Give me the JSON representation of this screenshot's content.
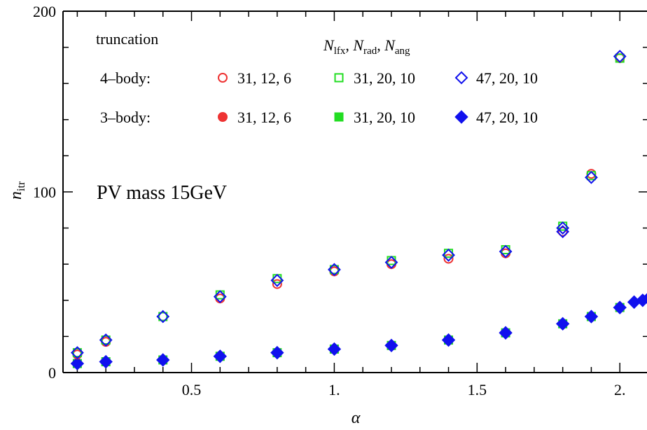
{
  "chart_data": {
    "type": "scatter",
    "title": "",
    "annotation": "PV mass 15GeV",
    "xlabel": "α",
    "ylabel": {
      "main": "n",
      "sub": "itr"
    },
    "xlim": [
      0.05,
      2.1
    ],
    "ylim": [
      0,
      200
    ],
    "x_ticks": [
      {
        "value": 0.5,
        "label": "0.5"
      },
      {
        "value": 1.0,
        "label": "1."
      },
      {
        "value": 1.5,
        "label": "1.5"
      },
      {
        "value": 2.0,
        "label": "2."
      }
    ],
    "y_ticks": [
      {
        "value": 0,
        "label": "0"
      },
      {
        "value": 100,
        "label": "100"
      },
      {
        "value": 200,
        "label": "200"
      }
    ],
    "grid": false,
    "legend": {
      "placement": "top-left",
      "truncation_header": "truncation",
      "param_header_parts": [
        {
          "main": "N",
          "sub": "lfx",
          "tail": ", "
        },
        {
          "main": "N",
          "sub": "rad",
          "tail": ", "
        },
        {
          "main": "N",
          "sub": "ang",
          "tail": ""
        }
      ],
      "row_labels": [
        "4–body:",
        "3–body:"
      ],
      "series_labels": [
        "31, 12, 6",
        "31, 20, 10",
        "47, 20, 10"
      ]
    },
    "series": [
      {
        "name": "4–body: 31, 12, 6",
        "marker": "circle-open",
        "color": "#ee3333",
        "x": [
          0.1,
          0.2,
          0.4,
          0.6,
          0.8,
          1.0,
          1.2,
          1.4,
          1.6,
          1.8,
          1.9,
          2.0
        ],
        "y": [
          10,
          17,
          31,
          41,
          49,
          56,
          60,
          63,
          66,
          78,
          110,
          174
        ]
      },
      {
        "name": "4–body: 31, 20, 10",
        "marker": "square-open",
        "color": "#22dd22",
        "x": [
          0.1,
          0.2,
          0.4,
          0.6,
          0.8,
          1.0,
          1.2,
          1.4,
          1.6,
          1.8,
          1.9,
          2.0
        ],
        "y": [
          11,
          18,
          31,
          43,
          52,
          57,
          62,
          66,
          68,
          81,
          109,
          174
        ]
      },
      {
        "name": "4–body: 47, 20, 10",
        "marker": "diamond-open",
        "color": "#1111ee",
        "x": [
          0.1,
          0.2,
          0.4,
          0.6,
          0.8,
          1.0,
          1.2,
          1.4,
          1.6,
          1.8,
          1.8,
          1.9,
          2.0
        ],
        "y": [
          11,
          18,
          31,
          42,
          51,
          57,
          61,
          65,
          67,
          78,
          80,
          108,
          175
        ]
      },
      {
        "name": "3–body: 31, 12, 6",
        "marker": "circle-filled",
        "color": "#ee3333",
        "x": [
          0.1,
          0.2,
          0.4,
          0.6,
          0.8,
          1.0,
          1.2,
          1.4,
          1.6,
          1.8,
          1.9,
          2.0
        ],
        "y": [
          5,
          6,
          7,
          9,
          11,
          13,
          15,
          18,
          22,
          27,
          31,
          36
        ]
      },
      {
        "name": "3–body: 31, 20, 10",
        "marker": "square-filled",
        "color": "#22dd22",
        "x": [
          0.1,
          0.2,
          0.4,
          0.6,
          0.8,
          1.0,
          1.2,
          1.4,
          1.6,
          1.8,
          1.9,
          2.0
        ],
        "y": [
          5,
          6,
          7,
          9,
          11,
          13,
          15,
          18,
          22,
          27,
          31,
          36
        ]
      },
      {
        "name": "3–body: 47, 20, 10",
        "marker": "diamond-filled",
        "color": "#1111ee",
        "x": [
          0.1,
          0.2,
          0.4,
          0.6,
          0.8,
          1.0,
          1.2,
          1.4,
          1.6,
          1.8,
          1.9,
          2.0,
          2.05,
          2.08,
          2.1
        ],
        "y": [
          5,
          6,
          7,
          9,
          11,
          13,
          15,
          18,
          22,
          27,
          31,
          36,
          39,
          40,
          41
        ]
      }
    ]
  }
}
